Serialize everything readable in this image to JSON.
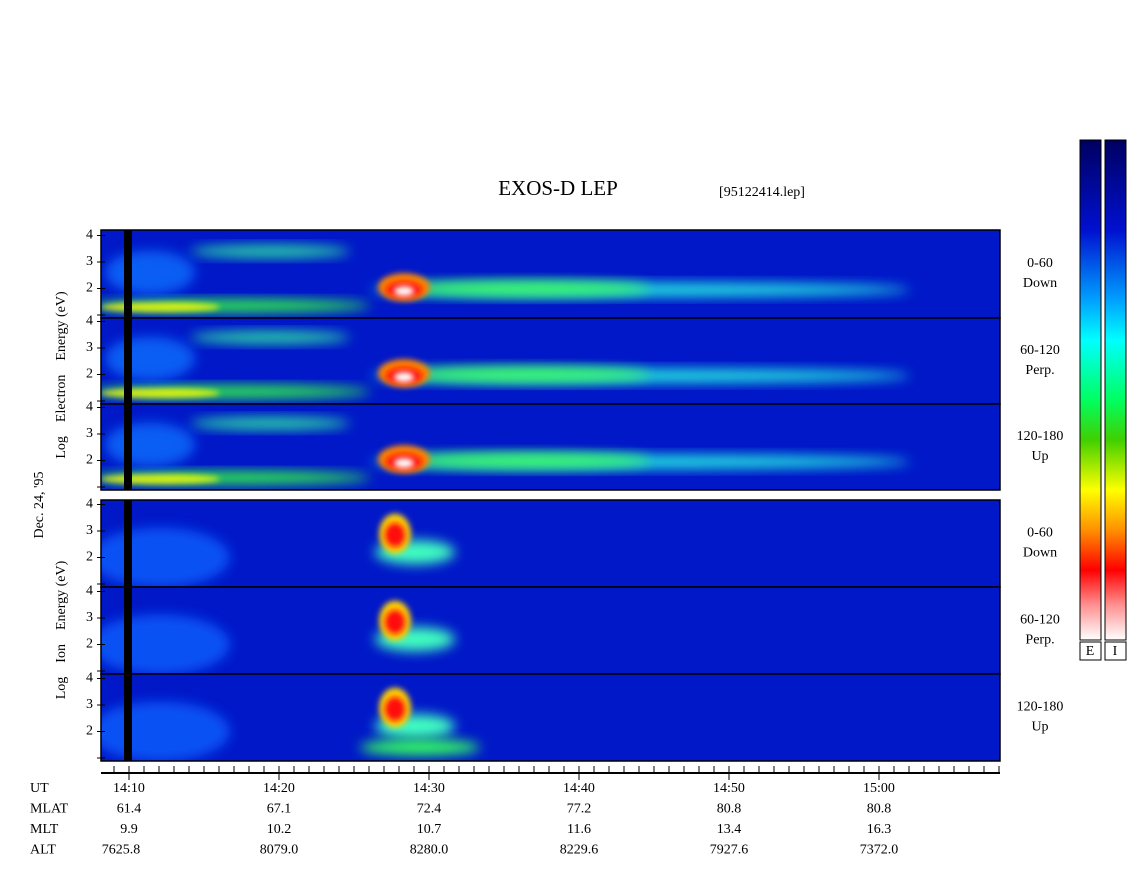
{
  "title": "EXOS-D LEP",
  "file": "[95122414.lep]",
  "date_label": "Dec. 24, '95",
  "species_labels": [
    {
      "log": "Log",
      "name": "Electron",
      "energy": "Energy (eV)"
    },
    {
      "log": "Log",
      "name": "Ion",
      "energy": "Energy (eV)"
    }
  ],
  "panels": [
    {
      "pitch": "0-60",
      "direction": "Down",
      "yticks": [
        2,
        3,
        4
      ]
    },
    {
      "pitch": "60-120",
      "direction": "Perp.",
      "yticks": [
        2,
        3,
        4
      ]
    },
    {
      "pitch": "120-180",
      "direction": "Up",
      "yticks": [
        2,
        3,
        4
      ]
    },
    {
      "pitch": "0-60",
      "direction": "Down",
      "yticks": [
        2,
        3,
        4
      ]
    },
    {
      "pitch": "60-120",
      "direction": "Perp.",
      "yticks": [
        2,
        3,
        4
      ]
    },
    {
      "pitch": "120-180",
      "direction": "Up",
      "yticks": [
        2,
        3,
        4
      ]
    }
  ],
  "colorbar_labels": [
    "E",
    "I"
  ],
  "axis_rows": [
    {
      "label": "UT",
      "values": [
        "14:10",
        "14:20",
        "14:30",
        "14:40",
        "14:50",
        "15:00"
      ]
    },
    {
      "label": "MLAT",
      "values": [
        "61.4",
        "67.1",
        "72.4",
        "77.2",
        "80.8",
        "80.8"
      ]
    },
    {
      "label": "MLT",
      "values": [
        "9.9",
        "10.2",
        "10.7",
        "11.6",
        "13.4",
        "16.3"
      ]
    },
    {
      "label": "ALT",
      "values": [
        "7625.8",
        "8079.0",
        "8280.0",
        "8229.6",
        "7927.6",
        "7372.0"
      ]
    }
  ]
}
